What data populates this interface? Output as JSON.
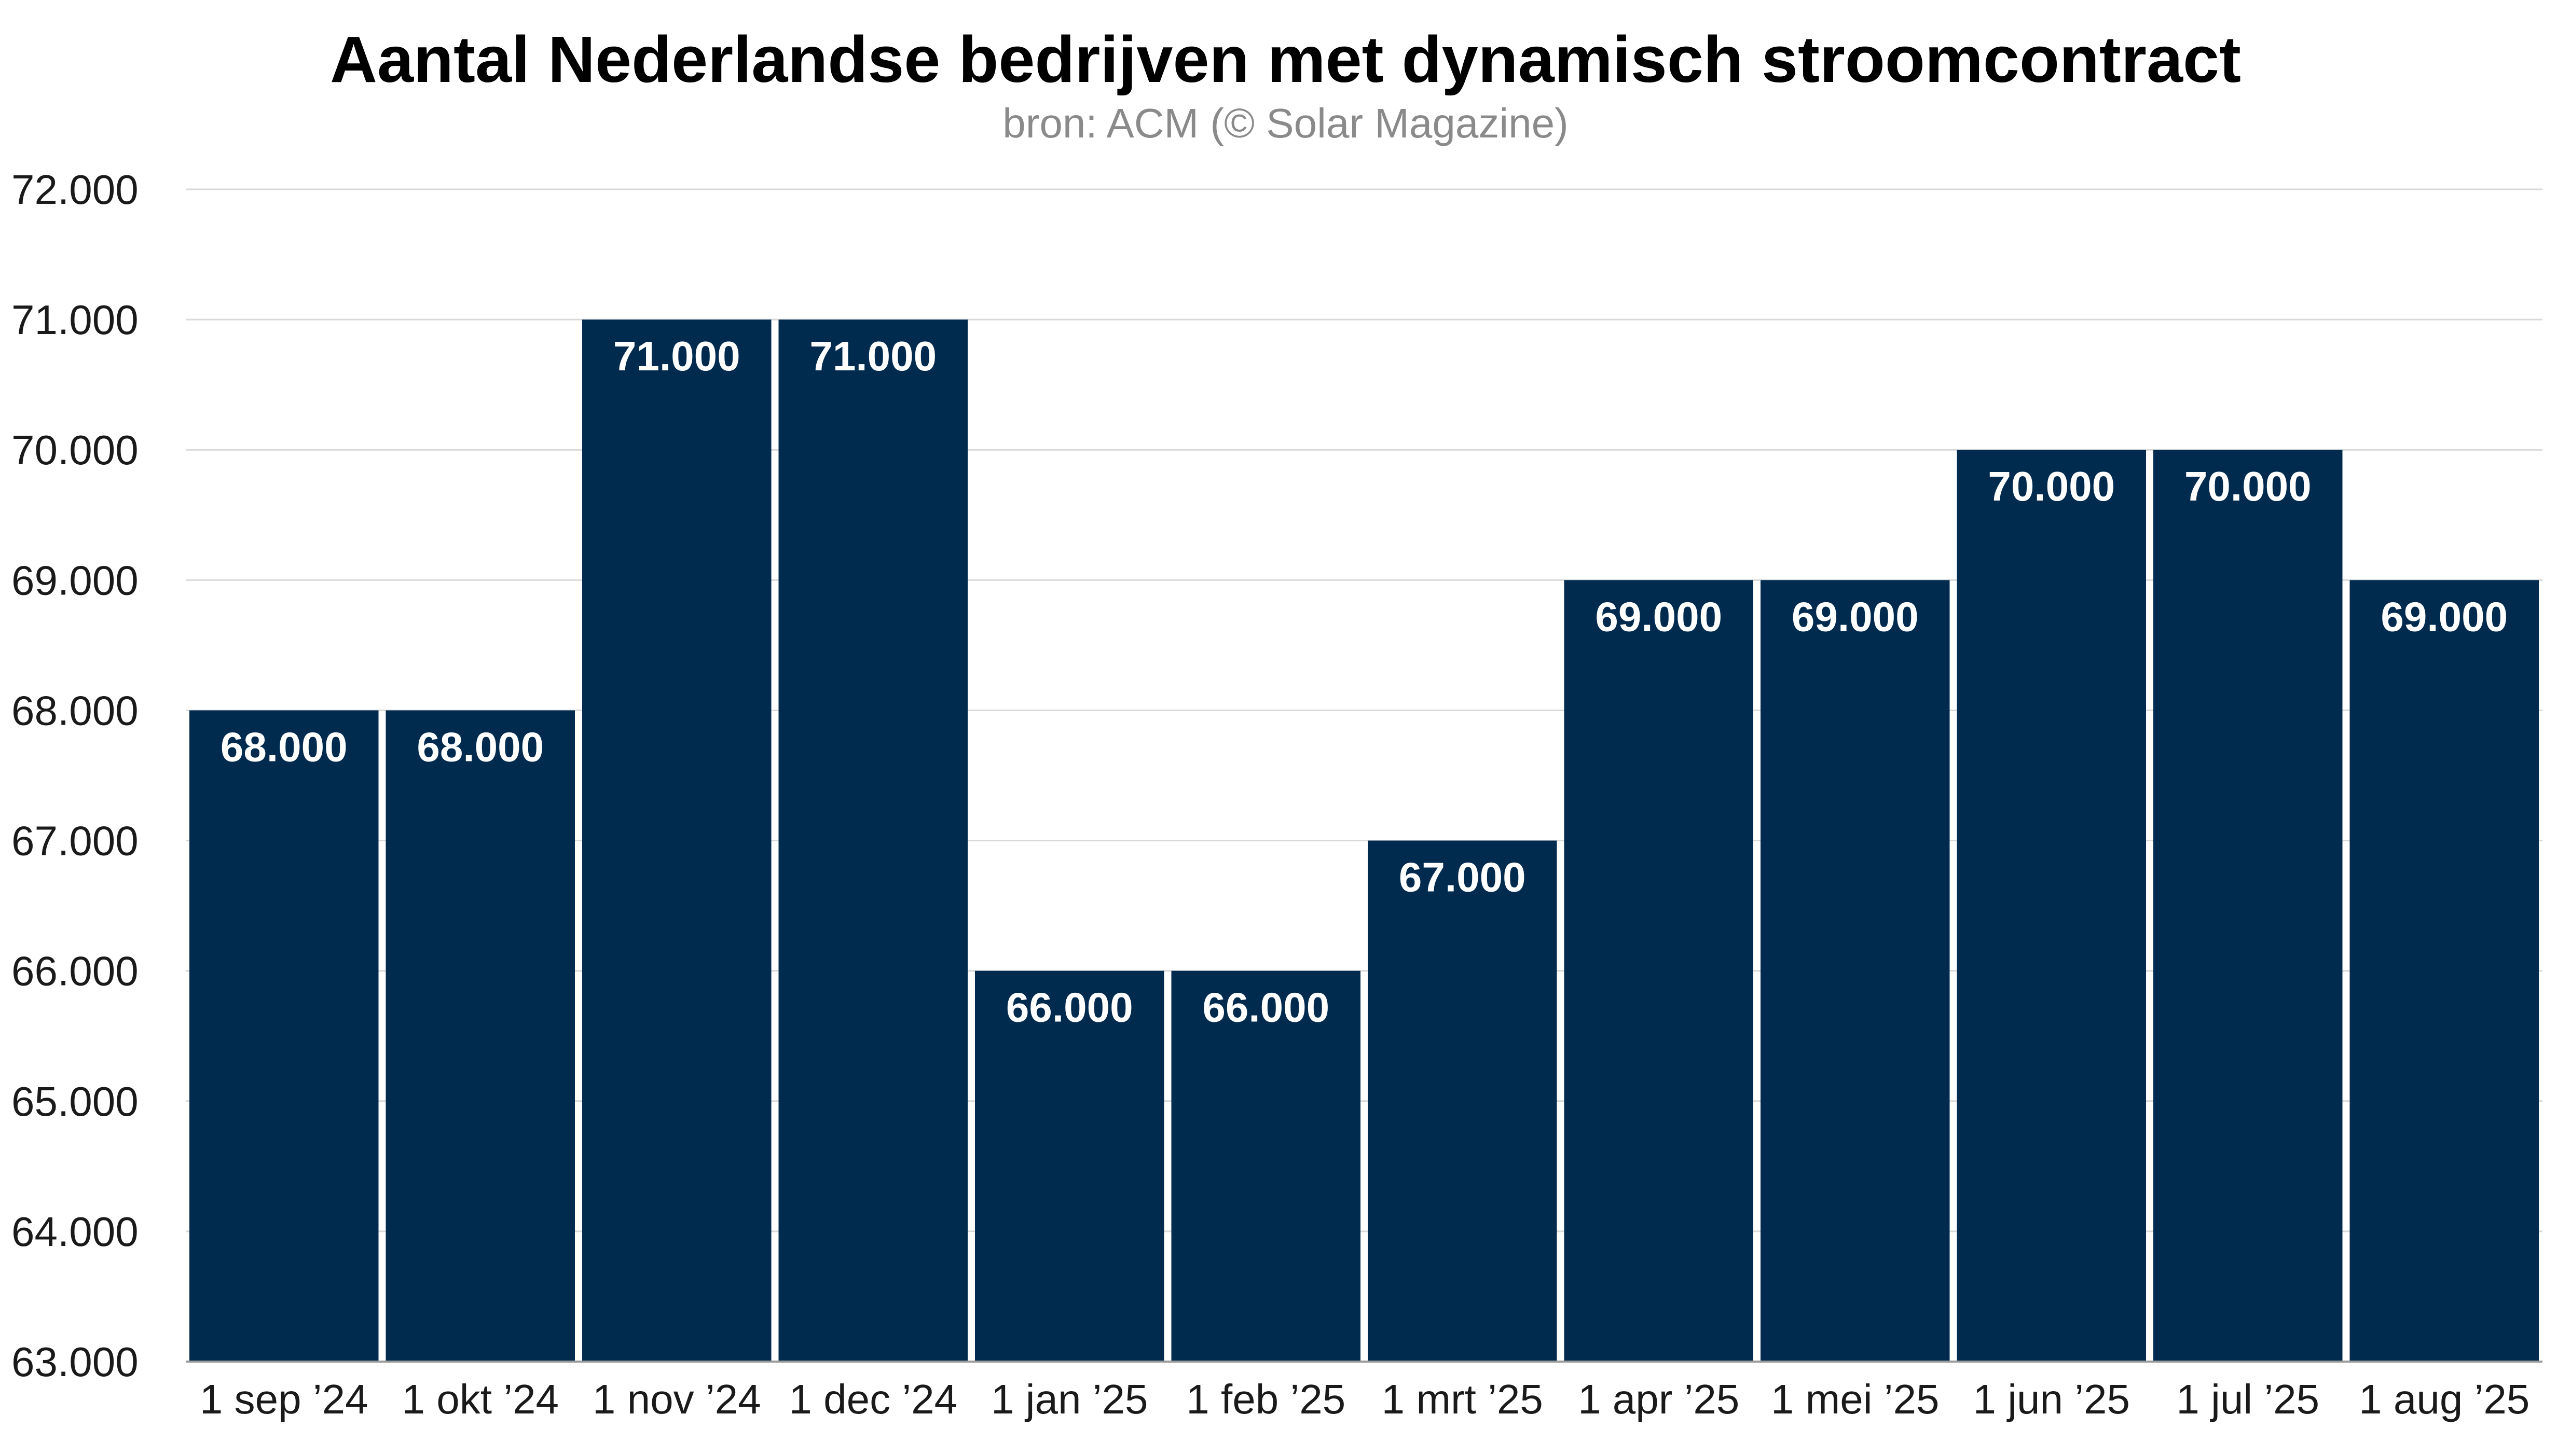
{
  "chart_data": {
    "type": "bar",
    "title": "Aantal Nederlandse bedrijven met dynamisch stroomcontract",
    "subtitle": "bron: ACM (© Solar Magazine)",
    "categories": [
      "1 sep ’24",
      "1 okt ’24",
      "1 nov ’24",
      "1 dec ’24",
      "1 jan ’25",
      "1 feb ’25",
      "1 mrt ’25",
      "1 apr ’25",
      "1 mei ’25",
      "1 jun ’25",
      "1 jul ’25",
      "1 aug ’25"
    ],
    "values": [
      68000,
      68000,
      71000,
      71000,
      66000,
      66000,
      67000,
      69000,
      69000,
      70000,
      70000,
      69000
    ],
    "data_labels": [
      "68.000",
      "68.000",
      "71.000",
      "71.000",
      "66.000",
      "66.000",
      "67.000",
      "69.000",
      "69.000",
      "70.000",
      "70.000",
      "69.000"
    ],
    "y_ticks": [
      63000,
      64000,
      65000,
      66000,
      67000,
      68000,
      69000,
      70000,
      71000,
      72000
    ],
    "y_tick_labels": [
      "63.000",
      "64.000",
      "65.000",
      "66.000",
      "67.000",
      "68.000",
      "69.000",
      "70.000",
      "71.000",
      "72.000"
    ],
    "ylim": [
      63000,
      72000
    ],
    "xlabel": "",
    "ylabel": "",
    "grid": true,
    "bar_color": "#002b4f",
    "grid_color": "#d9d9d9",
    "label_color": "#ffffff"
  }
}
